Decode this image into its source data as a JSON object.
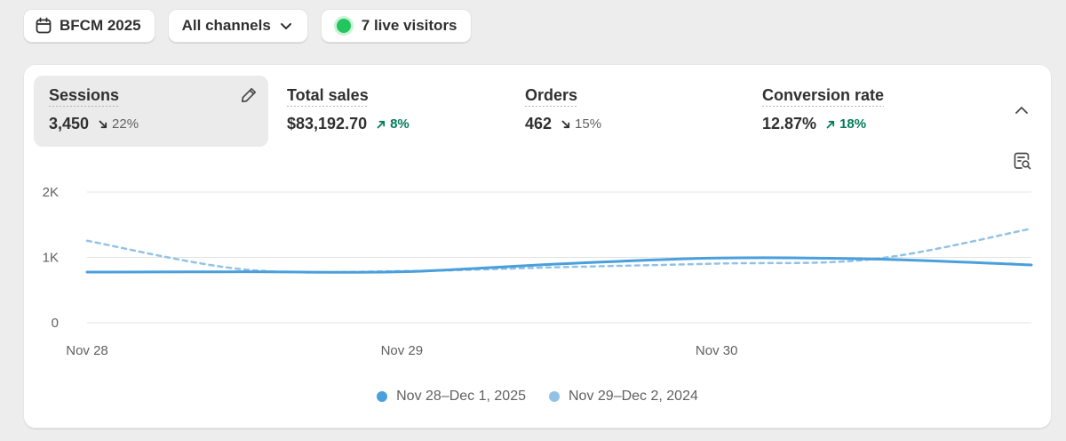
{
  "toolbar": {
    "date_filter": "BFCM 2025",
    "channel_filter": "All channels",
    "live_visitors": "7 live visitors"
  },
  "metrics": [
    {
      "label": "Sessions",
      "value": "3,450",
      "change": "22%",
      "direction": "down"
    },
    {
      "label": "Total sales",
      "value": "$83,192.70",
      "change": "8%",
      "direction": "up"
    },
    {
      "label": "Orders",
      "value": "462",
      "change": "15%",
      "direction": "down"
    },
    {
      "label": "Conversion rate",
      "value": "12.87%",
      "change": "18%",
      "direction": "up"
    }
  ],
  "icons": {
    "date": "calendar-icon",
    "dropdown": "chevron-down-icon",
    "live": "live-status-dot",
    "edit": "pencil-icon",
    "collapse": "chevron-up-icon",
    "analyze": "analyze-report-icon"
  },
  "colors": {
    "current_series": "#4a9fdd",
    "previous_series": "#92c3e6",
    "positive": "#047b5d",
    "live": "#22c55e"
  },
  "chart_data": {
    "type": "line",
    "title": "Sessions",
    "ylim": [
      0,
      2000
    ],
    "yticks": [
      {
        "value": 0,
        "label": "0"
      },
      {
        "value": 1000,
        "label": "1K"
      },
      {
        "value": 2000,
        "label": "2K"
      }
    ],
    "xlim": [
      0,
      3
    ],
    "xticks": [
      {
        "value": 0,
        "label": "Nov 28"
      },
      {
        "value": 1,
        "label": "Nov 29"
      },
      {
        "value": 2,
        "label": "Nov 30"
      }
    ],
    "series": [
      {
        "name": "Nov 28–Dec 1, 2025",
        "style": "solid",
        "x": [
          0,
          0.5,
          1,
          1.5,
          2,
          2.5,
          3
        ],
        "values": [
          775,
          780,
          780,
          900,
          990,
          975,
          885
        ]
      },
      {
        "name": "Nov 29–Dec 2, 2024",
        "style": "dashed",
        "x": [
          0,
          0.5,
          1,
          1.5,
          2,
          2.5,
          3
        ],
        "values": [
          1255,
          815,
          790,
          850,
          905,
          975,
          1440
        ]
      }
    ]
  }
}
